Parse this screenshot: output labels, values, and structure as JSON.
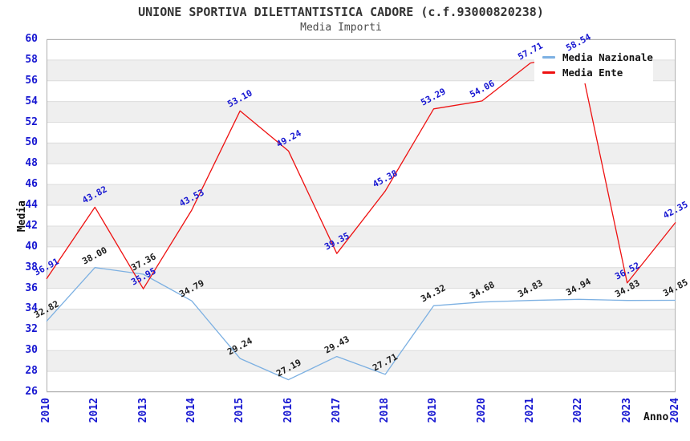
{
  "header": {
    "title": "UNIONE SPORTIVA DILETTANTISTICA CADORE (c.f.93000820238)",
    "subtitle": "Media Importi"
  },
  "chart_data": {
    "type": "line",
    "title": "UNIONE SPORTIVA DILETTANTISTICA CADORE (c.f.93000820238)",
    "subtitle": "Media Importi",
    "xlabel": "Anno",
    "ylabel": "Media",
    "ylim": [
      26,
      60
    ],
    "ytick_step": 2,
    "grid": true,
    "band_fill": "#efefef",
    "grid_color": "#dcdcdc",
    "border_color": "#b0b0b0",
    "axis_label_color": "#1616d1",
    "legend_position": "top-right",
    "categories": [
      "2010",
      "2012",
      "2013",
      "2014",
      "2015",
      "2016",
      "2017",
      "2018",
      "2019",
      "2020",
      "2021",
      "2022",
      "2023",
      "2024"
    ],
    "series": [
      {
        "name": "Media Nazionale",
        "color": "#7cb0e2",
        "label_color": "#1c1c1c",
        "values": [
          32.82,
          38.0,
          37.36,
          34.79,
          29.24,
          27.19,
          29.43,
          27.71,
          34.32,
          34.68,
          34.83,
          34.94,
          34.83,
          34.85
        ]
      },
      {
        "name": "Media Ente",
        "color": "#ee1111",
        "label_color": "#1616d1",
        "values": [
          36.91,
          43.82,
          35.95,
          43.53,
          53.1,
          49.24,
          39.35,
          45.38,
          53.29,
          54.06,
          57.71,
          58.54,
          36.52,
          42.35
        ]
      }
    ]
  }
}
